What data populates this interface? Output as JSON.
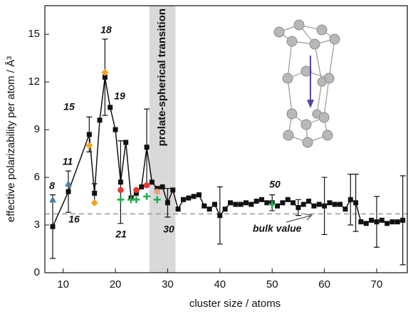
{
  "chart_data": {
    "type": "line",
    "x_label": "cluster size  /  atoms",
    "y_label": "effective polarizability per atom  /  Å³",
    "xlim": [
      6.5,
      76
    ],
    "ylim": [
      0,
      16.8
    ],
    "xticks": [
      10,
      20,
      30,
      40,
      50,
      60,
      70
    ],
    "yticks": [
      0,
      3,
      6,
      9,
      12,
      15
    ],
    "band": {
      "from": 26.5,
      "to": 31.5,
      "label": "prolate-spherical transition",
      "color": "#d9d9d9"
    },
    "reference_line": {
      "value": 3.7,
      "label": "bulk value",
      "color": "#999999"
    },
    "annotations": [
      "8",
      "11",
      "15",
      "16",
      "18",
      "19",
      "21",
      "30",
      "50"
    ],
    "series": [
      {
        "color": "#111111",
        "marker": "square",
        "line": true,
        "x": [
          8,
          11,
          15,
          16,
          17,
          18,
          19,
          20,
          21,
          22,
          23,
          24,
          25,
          26,
          27,
          28,
          29,
          30,
          31,
          32,
          33,
          34,
          35,
          36,
          37,
          38,
          39,
          40,
          41,
          42,
          43,
          44,
          45,
          46,
          47,
          48,
          49,
          50,
          51,
          52,
          53,
          54,
          55,
          56,
          57,
          58,
          59,
          60,
          61,
          62,
          63,
          64,
          65,
          66,
          67,
          68,
          69,
          70,
          71,
          72,
          73,
          74,
          75
        ],
        "values": [
          2.9,
          5.1,
          8.7,
          5.0,
          9.6,
          12.3,
          10.4,
          9.0,
          5.7,
          8.2,
          4.7,
          5.0,
          5.4,
          7.9,
          5.7,
          5.3,
          5.4,
          4.4,
          5.2,
          4.0,
          4.6,
          4.7,
          4.8,
          4.9,
          4.2,
          4.0,
          4.3,
          3.6,
          4.0,
          4.4,
          4.3,
          4.3,
          4.4,
          4.3,
          4.5,
          4.6,
          4.4,
          4.4,
          4.2,
          4.4,
          4.6,
          4.4,
          4.1,
          4.3,
          4.5,
          4.2,
          4.3,
          4.2,
          4.4,
          4.3,
          4.3,
          4.0,
          4.6,
          4.4,
          3.2,
          3.1,
          3.3,
          3.2,
          3.3,
          3.1,
          3.2,
          3.2,
          3.3
        ],
        "errors": [
          2.0,
          1.3,
          1.1,
          0.6,
          null,
          2.4,
          null,
          null,
          2.6,
          null,
          null,
          null,
          null,
          2.4,
          null,
          null,
          null,
          0.9,
          null,
          null,
          null,
          null,
          null,
          null,
          null,
          null,
          null,
          1.8,
          null,
          null,
          null,
          null,
          null,
          null,
          null,
          null,
          null,
          0.5,
          null,
          null,
          null,
          null,
          0.5,
          null,
          null,
          null,
          null,
          1.8,
          null,
          null,
          null,
          null,
          1.6,
          1.8,
          null,
          null,
          null,
          1.6,
          null,
          null,
          null,
          null,
          2.8
        ]
      },
      {
        "color": "#4a7fa8",
        "marker": "triangle",
        "x": [
          8,
          11
        ],
        "values": [
          4.6,
          5.6
        ]
      },
      {
        "color": "#f5a21c",
        "marker": "diamond",
        "x": [
          15,
          16,
          18
        ],
        "values": [
          8.0,
          4.4,
          12.6
        ]
      },
      {
        "color": "#e8392b",
        "marker": "circle",
        "x": [
          21,
          24,
          26
        ],
        "values": [
          5.2,
          5.2,
          5.5
        ]
      },
      {
        "color": "#e8a07a",
        "marker": "circle",
        "x": [
          28
        ],
        "values": [
          5.1
        ]
      },
      {
        "color": "#1fae4e",
        "marker": "plus",
        "x": [
          21,
          23,
          24,
          26,
          28,
          50
        ],
        "values": [
          4.6,
          4.6,
          4.6,
          4.8,
          4.6,
          4.3
        ]
      }
    ]
  }
}
